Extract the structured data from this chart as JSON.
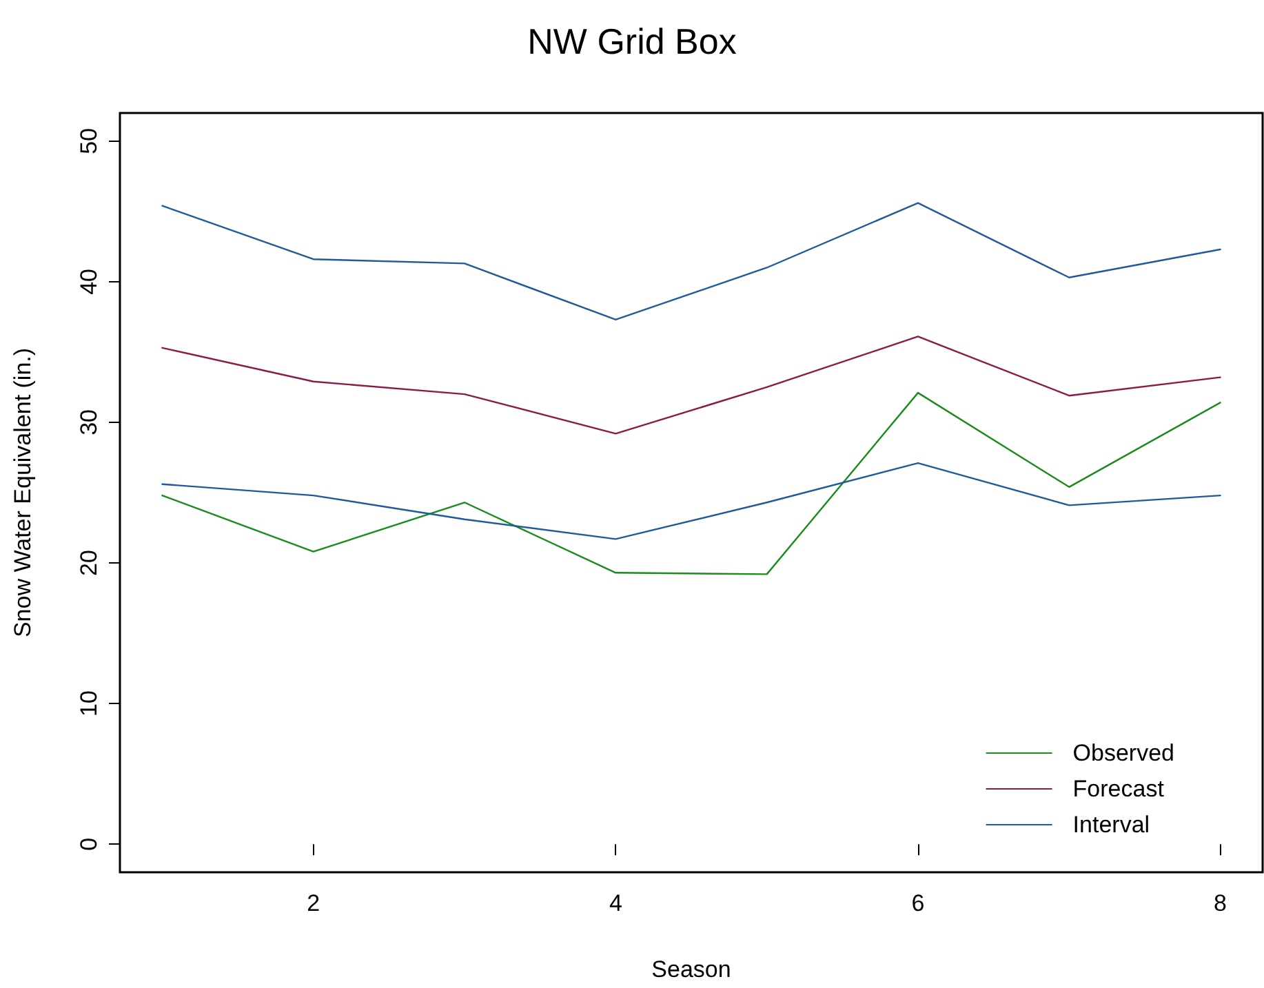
{
  "chart_data": {
    "type": "line",
    "title": "NW Grid Box",
    "xlabel": "Season",
    "ylabel": "Snow Water Equivalent (in.)",
    "x": [
      1,
      2,
      3,
      4,
      5,
      6,
      7,
      8
    ],
    "series": [
      {
        "name": "Observed",
        "color": "#1a8c1a",
        "values": [
          24.8,
          20.8,
          24.3,
          19.3,
          19.2,
          32.1,
          25.4,
          31.4
        ]
      },
      {
        "name": "Forecast",
        "color": "#8b1a4b",
        "values": [
          35.3,
          32.9,
          32.0,
          29.2,
          32.5,
          36.1,
          31.9,
          33.2
        ]
      },
      {
        "name": "Interval",
        "color": "#1f5a9a",
        "values": [
          45.4,
          41.6,
          41.3,
          37.3,
          41.0,
          45.6,
          40.3,
          42.3
        ]
      },
      {
        "color": "#1f5a9a",
        "values": [
          25.6,
          24.8,
          23.1,
          21.7,
          24.3,
          27.1,
          24.1,
          24.8
        ]
      }
    ],
    "xlim": [
      0.72,
      8.28
    ],
    "xticks": [
      2,
      4,
      6,
      8
    ],
    "ylim": [
      -2,
      52
    ],
    "yticks": [
      0,
      10,
      20,
      30,
      40,
      50
    ],
    "grid": false,
    "legend": "bottom right",
    "marker": "none"
  }
}
